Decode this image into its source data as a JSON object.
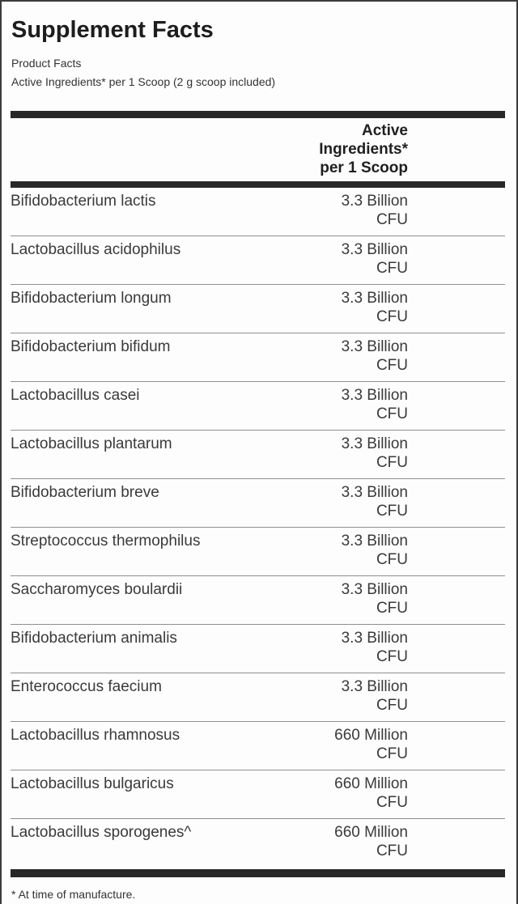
{
  "label": {
    "title": "Supplement Facts",
    "subtitle1": "Product Facts",
    "subtitle2": "Active Ingredients* per 1 Scoop (2 g scoop included)",
    "footnote": "* At time of manufacture.",
    "colors": {
      "divider_bar": "#282828",
      "row_separator": "#8f8f8f",
      "text": "#3a3a3a"
    }
  },
  "table": {
    "column_header": {
      "line1": "Active",
      "line2": "Ingredients*",
      "line3": "per 1 Scoop"
    },
    "rows": [
      {
        "name": "Bifidobacterium lactis",
        "amount": "3.3 Billion",
        "unit": "CFU"
      },
      {
        "name": "Lactobacillus acidophilus",
        "amount": "3.3 Billion",
        "unit": "CFU"
      },
      {
        "name": "Bifidobacterium longum",
        "amount": "3.3 Billion",
        "unit": "CFU"
      },
      {
        "name": "Bifidobacterium bifidum",
        "amount": "3.3 Billion",
        "unit": "CFU"
      },
      {
        "name": "Lactobacillus casei",
        "amount": "3.3 Billion",
        "unit": "CFU"
      },
      {
        "name": "Lactobacillus plantarum",
        "amount": "3.3 Billion",
        "unit": "CFU"
      },
      {
        "name": "Bifidobacterium breve",
        "amount": "3.3 Billion",
        "unit": "CFU"
      },
      {
        "name": "Streptococcus thermophilus",
        "amount": "3.3 Billion",
        "unit": "CFU"
      },
      {
        "name": "Saccharomyces boulardii",
        "amount": "3.3 Billion",
        "unit": "CFU"
      },
      {
        "name": "Bifidobacterium animalis",
        "amount": "3.3 Billion",
        "unit": "CFU"
      },
      {
        "name": "Enterococcus faecium",
        "amount": "3.3 Billion",
        "unit": "CFU"
      },
      {
        "name": "Lactobacillus rhamnosus",
        "amount": "660 Million",
        "unit": "CFU"
      },
      {
        "name": "Lactobacillus bulgaricus",
        "amount": "660 Million",
        "unit": "CFU"
      },
      {
        "name": "Lactobacillus sporogenes^",
        "amount": "660 Million",
        "unit": "CFU"
      }
    ]
  }
}
